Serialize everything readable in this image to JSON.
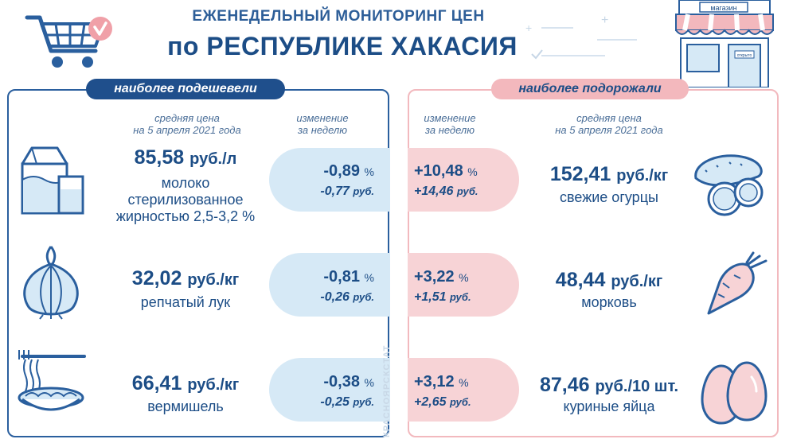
{
  "header": {
    "title_line1": "ЕЖЕНЕДЕЛЬНЫЙ МОНИТОРИНГ ЦЕН",
    "title_line2": "по РЕСПУБЛИКЕ ХАКАСИЯ",
    "shop_sign": "магазин",
    "shop_door_sign": "открыто"
  },
  "left": {
    "label": "наиболее подешевели",
    "col_price": [
      "средняя цена",
      "на 5 апреля 2021 года"
    ],
    "col_change": [
      "изменение",
      "за неделю"
    ],
    "items": [
      {
        "price": "85,58",
        "unit": "руб./л",
        "name_lines": [
          "молоко",
          "стерилизованное",
          "жирностью 2,5-3,2 %"
        ],
        "pct": "-0,89",
        "rub": "-0,77",
        "icon": "milk-icon"
      },
      {
        "price": "32,02",
        "unit": "руб./кг",
        "name_lines": [
          "репчатый лук"
        ],
        "pct": "-0,81",
        "rub": "-0,26",
        "icon": "onion-icon"
      },
      {
        "price": "66,41",
        "unit": "руб./кг",
        "name_lines": [
          "вермишель"
        ],
        "pct": "-0,38",
        "rub": "-0,25",
        "icon": "noodles-icon"
      }
    ]
  },
  "right": {
    "label": "наиболее подорожали",
    "col_change": [
      "изменение",
      "за неделю"
    ],
    "col_price": [
      "средняя цена",
      "на 5 апреля 2021 года"
    ],
    "items": [
      {
        "price": "152,41",
        "unit": "руб./кг",
        "name_lines": [
          "свежие огурцы"
        ],
        "pct": "+10,48",
        "rub": "+14,46",
        "icon": "cucumber-icon"
      },
      {
        "price": "48,44",
        "unit": "руб./кг",
        "name_lines": [
          "морковь"
        ],
        "pct": "+3,22",
        "rub": "+1,51",
        "icon": "carrot-icon"
      },
      {
        "price": "87,46",
        "unit": "руб./10 шт.",
        "name_lines": [
          "куриные яйца"
        ],
        "pct": "+3,12",
        "rub": "+2,65",
        "icon": "eggs-icon"
      }
    ]
  },
  "units": {
    "percent": "%",
    "rub": "руб."
  },
  "watermark": "КРАСНОЯРСКСТАТ",
  "colors": {
    "dark_blue": "#1c4d86",
    "light_blue": "#d6e9f6",
    "pink": "#f3b8bd",
    "light_pink": "#f7d3d6",
    "accent_pink": "#f0a0a8"
  }
}
